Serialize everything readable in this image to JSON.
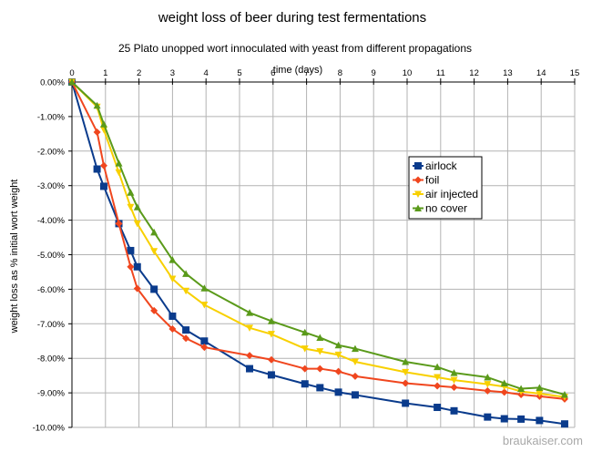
{
  "chart_data": {
    "type": "line",
    "title": "weight loss of beer during test fermentations",
    "subtitle": "25 Plato unopped wort innoculated with yeast from different propagations",
    "xlabel": "time (days)",
    "ylabel": "weight loss as % initial wort weight",
    "xlim": [
      0,
      15
    ],
    "ylim": [
      -10,
      0
    ],
    "x_ticks": [
      0,
      1,
      2,
      3,
      4,
      5,
      6,
      7,
      8,
      9,
      10,
      11,
      12,
      13,
      14,
      15
    ],
    "y_ticks": [
      0,
      -1,
      -2,
      -3,
      -4,
      -5,
      -6,
      -7,
      -8,
      -9,
      -10
    ],
    "y_tick_format": "percent_2dp",
    "grid": true,
    "legend_position": "right-middle",
    "series": [
      {
        "name": "airlock",
        "color": "#0a3b8c",
        "marker": "square",
        "points": [
          [
            0,
            0
          ],
          [
            0.75,
            -2.52
          ],
          [
            0.95,
            -3.02
          ],
          [
            1.4,
            -4.1
          ],
          [
            1.75,
            -4.88
          ],
          [
            1.95,
            -5.35
          ],
          [
            2.45,
            -6.0
          ],
          [
            3.0,
            -6.78
          ],
          [
            3.4,
            -7.18
          ],
          [
            3.95,
            -7.5
          ],
          [
            5.3,
            -8.3
          ],
          [
            5.95,
            -8.48
          ],
          [
            6.95,
            -8.74
          ],
          [
            7.4,
            -8.85
          ],
          [
            7.95,
            -8.98
          ],
          [
            8.45,
            -9.06
          ],
          [
            9.95,
            -9.3
          ],
          [
            10.9,
            -9.42
          ],
          [
            11.4,
            -9.52
          ],
          [
            12.4,
            -9.7
          ],
          [
            12.9,
            -9.75
          ],
          [
            13.4,
            -9.76
          ],
          [
            13.95,
            -9.8
          ],
          [
            14.7,
            -9.9
          ]
        ]
      },
      {
        "name": "foil",
        "color": "#f0461e",
        "marker": "diamond",
        "points": [
          [
            0,
            0
          ],
          [
            0.75,
            -1.45
          ],
          [
            0.95,
            -2.42
          ],
          [
            1.4,
            -4.1
          ],
          [
            1.75,
            -5.35
          ],
          [
            1.95,
            -5.98
          ],
          [
            2.45,
            -6.62
          ],
          [
            3.0,
            -7.15
          ],
          [
            3.4,
            -7.42
          ],
          [
            3.95,
            -7.68
          ],
          [
            5.3,
            -7.92
          ],
          [
            5.95,
            -8.04
          ],
          [
            6.95,
            -8.3
          ],
          [
            7.4,
            -8.3
          ],
          [
            7.95,
            -8.38
          ],
          [
            8.45,
            -8.52
          ],
          [
            9.95,
            -8.72
          ],
          [
            10.9,
            -8.8
          ],
          [
            11.4,
            -8.84
          ],
          [
            12.4,
            -8.94
          ],
          [
            12.9,
            -8.98
          ],
          [
            13.4,
            -9.05
          ],
          [
            13.95,
            -9.1
          ],
          [
            14.7,
            -9.18
          ]
        ]
      },
      {
        "name": "air injected",
        "color": "#f8d000",
        "marker": "triangle-down",
        "points": [
          [
            0,
            0
          ],
          [
            0.75,
            -0.72
          ],
          [
            0.95,
            -1.38
          ],
          [
            1.4,
            -2.62
          ],
          [
            1.75,
            -3.62
          ],
          [
            1.95,
            -4.1
          ],
          [
            2.45,
            -4.9
          ],
          [
            3.0,
            -5.7
          ],
          [
            3.4,
            -6.05
          ],
          [
            3.95,
            -6.45
          ],
          [
            5.3,
            -7.12
          ],
          [
            5.95,
            -7.3
          ],
          [
            6.95,
            -7.72
          ],
          [
            7.4,
            -7.8
          ],
          [
            7.95,
            -7.9
          ],
          [
            8.45,
            -8.1
          ],
          [
            9.95,
            -8.4
          ],
          [
            10.9,
            -8.55
          ],
          [
            11.4,
            -8.63
          ],
          [
            12.4,
            -8.75
          ],
          [
            12.9,
            -8.82
          ],
          [
            13.4,
            -8.96
          ],
          [
            13.95,
            -9.02
          ],
          [
            14.7,
            -9.12
          ]
        ]
      },
      {
        "name": "no cover",
        "color": "#5a9a1a",
        "marker": "triangle-up",
        "points": [
          [
            0,
            0
          ],
          [
            0.75,
            -0.68
          ],
          [
            0.95,
            -1.22
          ],
          [
            1.4,
            -2.35
          ],
          [
            1.75,
            -3.2
          ],
          [
            1.95,
            -3.62
          ],
          [
            2.45,
            -4.35
          ],
          [
            3.0,
            -5.15
          ],
          [
            3.4,
            -5.55
          ],
          [
            3.95,
            -5.97
          ],
          [
            5.3,
            -6.68
          ],
          [
            5.95,
            -6.92
          ],
          [
            6.95,
            -7.25
          ],
          [
            7.4,
            -7.4
          ],
          [
            7.95,
            -7.62
          ],
          [
            8.45,
            -7.72
          ],
          [
            9.95,
            -8.1
          ],
          [
            10.9,
            -8.25
          ],
          [
            11.4,
            -8.42
          ],
          [
            12.4,
            -8.55
          ],
          [
            12.9,
            -8.72
          ],
          [
            13.4,
            -8.88
          ],
          [
            13.95,
            -8.85
          ],
          [
            14.7,
            -9.05
          ]
        ]
      }
    ]
  },
  "watermark": "braukaiser.com"
}
